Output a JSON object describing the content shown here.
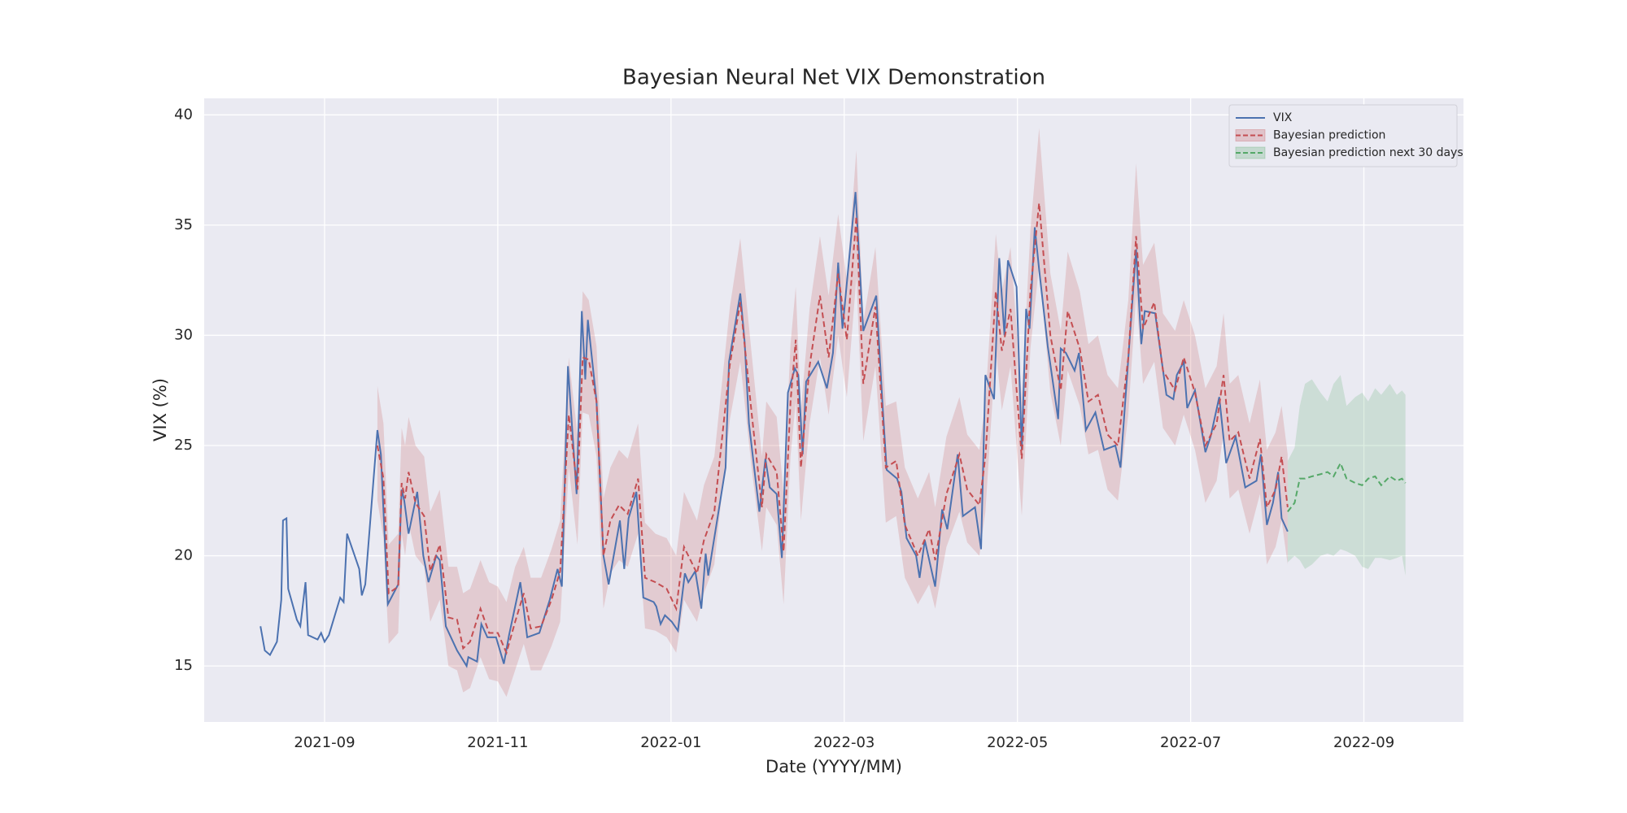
{
  "chart_data": {
    "type": "line",
    "title": "Bayesian Neural Net VIX Demonstration",
    "x_label": "Date (YYYY/MM)",
    "y_label": "VIX (%)",
    "xlim": [
      7.61,
      22.15
    ],
    "xticks": [
      {
        "value": 9,
        "label": "2021-09"
      },
      {
        "value": 11,
        "label": "2021-11"
      },
      {
        "value": 13,
        "label": "2022-01"
      },
      {
        "value": 15,
        "label": "2022-03"
      },
      {
        "value": 17,
        "label": "2022-05"
      },
      {
        "value": 19,
        "label": "2022-07"
      },
      {
        "value": 21,
        "label": "2022-09"
      }
    ],
    "ylim": [
      12.46,
      40.75
    ],
    "yticks": [
      15,
      20,
      25,
      30,
      35,
      40
    ],
    "grid": true,
    "legend": "upper right",
    "series": [
      {
        "name": "VIX",
        "color": "#4c72b0",
        "style": "solid",
        "x": [
          8.26,
          8.31,
          8.37,
          8.45,
          8.5,
          8.52,
          8.56,
          8.58,
          8.68,
          8.72,
          8.78,
          8.81,
          8.92,
          8.96,
          9.0,
          9.05,
          9.18,
          9.22,
          9.26,
          9.4,
          9.43,
          9.47,
          9.61,
          9.65,
          9.73,
          9.85,
          9.89,
          9.92,
          9.97,
          10.07,
          10.14,
          10.2,
          10.29,
          10.33,
          10.4,
          10.53,
          10.64,
          10.66,
          10.76,
          10.81,
          10.88,
          10.98,
          11.07,
          11.13,
          11.26,
          11.34,
          11.48,
          11.6,
          11.69,
          11.74,
          11.81,
          11.91,
          11.97,
          12.01,
          12.04,
          12.14,
          12.22,
          12.28,
          12.41,
          12.46,
          12.51,
          12.6,
          12.68,
          12.8,
          12.83,
          12.88,
          12.93,
          13.01,
          13.08,
          13.16,
          13.2,
          13.28,
          13.35,
          13.4,
          13.43,
          13.63,
          13.67,
          13.8,
          13.85,
          13.9,
          14.02,
          14.09,
          14.14,
          14.22,
          14.28,
          14.35,
          14.43,
          14.47,
          14.52,
          14.56,
          14.7,
          14.8,
          14.87,
          14.93,
          14.98,
          15.13,
          15.22,
          15.37,
          15.44,
          15.49,
          15.61,
          15.66,
          15.72,
          15.83,
          15.87,
          15.93,
          16.05,
          16.13,
          16.19,
          16.31,
          16.37,
          16.51,
          16.58,
          16.63,
          16.73,
          16.79,
          16.85,
          16.89,
          16.99,
          17.05,
          17.1,
          17.14,
          17.2,
          17.25,
          17.35,
          17.47,
          17.5,
          17.56,
          17.66,
          17.71,
          17.79,
          17.9,
          18.0,
          18.13,
          18.19,
          18.37,
          18.43,
          18.47,
          18.59,
          18.66,
          18.72,
          18.8,
          18.84,
          18.92,
          18.96,
          19.05,
          19.17,
          19.23,
          19.33,
          19.41,
          19.52,
          19.63,
          19.76,
          19.81,
          19.88,
          19.95,
          20.01,
          20.05,
          20.12
        ],
        "values": [
          16.8,
          15.7,
          15.5,
          16.1,
          18.0,
          21.6,
          21.7,
          18.5,
          17.1,
          16.8,
          18.8,
          16.4,
          16.2,
          16.5,
          16.1,
          16.4,
          18.1,
          17.9,
          21.0,
          19.4,
          18.2,
          18.7,
          25.7,
          24.6,
          17.8,
          18.7,
          23.0,
          22.5,
          21.0,
          22.9,
          20.0,
          18.8,
          20.0,
          19.8,
          16.8,
          15.7,
          15.0,
          15.4,
          15.2,
          16.9,
          16.3,
          16.3,
          15.1,
          16.4,
          18.8,
          16.3,
          16.5,
          18.0,
          19.4,
          18.6,
          28.6,
          22.8,
          31.1,
          28.0,
          30.7,
          27.0,
          20.0,
          18.7,
          21.6,
          19.4,
          21.7,
          22.9,
          18.1,
          17.9,
          17.7,
          16.9,
          17.3,
          17.0,
          16.6,
          19.2,
          18.8,
          19.3,
          17.6,
          20.1,
          19.1,
          24.0,
          28.8,
          31.9,
          29.7,
          26.0,
          22.0,
          24.4,
          23.1,
          22.8,
          19.9,
          27.4,
          28.5,
          28.2,
          24.6,
          27.9,
          28.8,
          27.6,
          29.2,
          33.3,
          30.3,
          36.5,
          30.2,
          31.8,
          27.0,
          23.9,
          23.5,
          22.9,
          20.8,
          20.0,
          19.0,
          20.7,
          18.6,
          22.1,
          21.2,
          24.6,
          21.8,
          22.2,
          20.3,
          28.2,
          27.1,
          33.5,
          30.0,
          33.4,
          32.2,
          24.8,
          31.2,
          30.3,
          34.9,
          33.0,
          29.5,
          26.2,
          29.4,
          29.2,
          28.4,
          29.2,
          25.7,
          26.5,
          24.8,
          25.0,
          24.0,
          33.9,
          29.6,
          31.1,
          31.0,
          29.0,
          27.3,
          27.1,
          28.2,
          28.8,
          26.7,
          27.5,
          24.7,
          25.4,
          27.2,
          24.2,
          25.4,
          23.1,
          23.4,
          24.6,
          21.4,
          22.4,
          23.8,
          21.7,
          21.1
        ]
      },
      {
        "name": "Bayesian prediction",
        "color": "#c44e52",
        "style": "dashed",
        "x": [
          9.61,
          9.68,
          9.74,
          9.85,
          9.89,
          9.93,
          9.97,
          10.05,
          10.15,
          10.22,
          10.33,
          10.43,
          10.53,
          10.6,
          10.68,
          10.8,
          10.9,
          11.0,
          11.1,
          11.2,
          11.3,
          11.38,
          11.5,
          11.62,
          11.72,
          11.82,
          11.92,
          11.98,
          12.05,
          12.14,
          12.22,
          12.3,
          12.4,
          12.5,
          12.62,
          12.7,
          12.82,
          12.95,
          13.06,
          13.15,
          13.3,
          13.38,
          13.5,
          13.68,
          13.8,
          13.93,
          14.05,
          14.1,
          14.22,
          14.3,
          14.38,
          14.44,
          14.5,
          14.6,
          14.72,
          14.82,
          14.93,
          15.03,
          15.14,
          15.22,
          15.36,
          15.48,
          15.6,
          15.7,
          15.85,
          15.98,
          16.05,
          16.18,
          16.33,
          16.42,
          16.56,
          16.63,
          16.75,
          16.82,
          16.92,
          17.05,
          17.15,
          17.25,
          17.38,
          17.5,
          17.58,
          17.72,
          17.82,
          17.93,
          18.04,
          18.16,
          18.28,
          18.37,
          18.45,
          18.58,
          18.68,
          18.82,
          18.92,
          19.05,
          19.17,
          19.3,
          19.38,
          19.45,
          19.55,
          19.68,
          19.8,
          19.88,
          19.98,
          20.05,
          20.12
        ],
        "values": [
          25.0,
          23.5,
          18.3,
          18.6,
          23.3,
          22.6,
          23.8,
          22.4,
          21.8,
          19.3,
          20.5,
          17.2,
          17.1,
          15.8,
          16.1,
          17.6,
          16.5,
          16.5,
          15.6,
          17.0,
          18.3,
          16.7,
          16.8,
          18.0,
          19.3,
          26.4,
          23.0,
          29.0,
          28.9,
          27.0,
          20.0,
          21.6,
          22.3,
          21.9,
          23.5,
          19.0,
          18.8,
          18.5,
          17.6,
          20.4,
          19.2,
          20.7,
          22.0,
          28.7,
          31.5,
          26.5,
          22.2,
          24.6,
          23.8,
          20.2,
          27.0,
          29.8,
          24.0,
          28.6,
          31.8,
          29.0,
          32.8,
          29.8,
          35.4,
          27.8,
          31.3,
          24.0,
          24.3,
          21.4,
          20.0,
          21.2,
          19.8,
          22.8,
          24.6,
          23.0,
          22.3,
          24.5,
          32.0,
          29.3,
          31.2,
          24.4,
          32.0,
          36.0,
          30.0,
          27.5,
          31.1,
          29.4,
          27.0,
          27.3,
          25.5,
          25.0,
          29.0,
          34.5,
          30.3,
          31.5,
          28.4,
          27.5,
          29.0,
          27.4,
          25.0,
          26.0,
          28.2,
          25.2,
          25.6,
          23.5,
          25.3,
          22.2,
          23.0,
          24.5,
          22.2
        ],
        "lower": [
          22.5,
          20.8,
          16.0,
          16.5,
          21.0,
          20.0,
          21.5,
          20.0,
          19.5,
          17.0,
          18.0,
          15.0,
          14.8,
          13.8,
          14.0,
          15.4,
          14.4,
          14.3,
          13.6,
          14.8,
          16.0,
          14.8,
          14.8,
          15.9,
          17.0,
          24.0,
          20.5,
          26.5,
          26.4,
          24.5,
          17.6,
          19.2,
          19.8,
          19.5,
          21.0,
          16.7,
          16.6,
          16.3,
          15.6,
          18.0,
          17.0,
          18.3,
          19.6,
          26.2,
          28.8,
          24.0,
          20.2,
          22.2,
          21.4,
          17.8,
          24.5,
          27.0,
          21.6,
          26.0,
          29.0,
          26.4,
          30.0,
          27.2,
          32.6,
          25.2,
          28.6,
          21.5,
          21.8,
          19.0,
          17.8,
          18.7,
          17.6,
          20.4,
          22.0,
          20.6,
          20.0,
          22.0,
          29.4,
          26.6,
          28.6,
          21.8,
          29.4,
          33.2,
          27.4,
          25.0,
          28.4,
          26.8,
          24.6,
          24.8,
          23.0,
          22.5,
          26.4,
          31.8,
          27.8,
          28.8,
          25.8,
          25.0,
          26.4,
          24.8,
          22.4,
          23.4,
          25.6,
          22.6,
          23.0,
          21.0,
          22.8,
          19.6,
          20.4,
          21.6,
          19.6
        ],
        "upper": [
          27.7,
          26.0,
          20.5,
          21.0,
          25.8,
          25.0,
          26.3,
          25.0,
          24.5,
          22.0,
          23.0,
          19.5,
          19.5,
          18.3,
          18.5,
          19.8,
          18.8,
          18.6,
          17.9,
          19.5,
          20.4,
          19.0,
          19.0,
          20.3,
          21.6,
          29.0,
          25.5,
          32.0,
          31.6,
          29.5,
          22.6,
          24.0,
          24.8,
          24.4,
          26.0,
          21.5,
          21.0,
          20.8,
          20.0,
          22.9,
          21.6,
          23.2,
          24.5,
          31.3,
          34.4,
          29.2,
          24.5,
          27.0,
          26.3,
          22.8,
          29.6,
          32.2,
          26.6,
          31.2,
          34.5,
          31.8,
          35.5,
          32.5,
          38.4,
          30.6,
          34.0,
          26.8,
          27.0,
          24.0,
          22.6,
          23.8,
          22.2,
          25.4,
          27.2,
          25.5,
          24.8,
          27.0,
          34.6,
          32.0,
          34.0,
          27.2,
          34.8,
          39.4,
          32.8,
          30.2,
          33.8,
          32.0,
          29.6,
          30.0,
          28.2,
          27.6,
          31.6,
          37.8,
          33.2,
          34.2,
          31.0,
          30.2,
          31.6,
          30.0,
          27.6,
          28.6,
          31.0,
          27.8,
          28.2,
          26.0,
          28.0,
          24.8,
          25.6,
          26.8,
          24.6
        ]
      },
      {
        "name": "Bayesian prediction next 30 days",
        "color": "#55a868",
        "style": "dashed",
        "x": [
          20.12,
          20.2,
          20.26,
          20.32,
          20.4,
          20.5,
          20.58,
          20.65,
          20.73,
          20.8,
          20.9,
          20.98,
          21.05,
          21.13,
          21.2,
          21.3,
          21.38,
          21.44,
          21.48
        ],
        "values": [
          22.0,
          22.4,
          23.5,
          23.5,
          23.6,
          23.7,
          23.8,
          23.6,
          24.2,
          23.5,
          23.3,
          23.2,
          23.5,
          23.6,
          23.2,
          23.6,
          23.4,
          23.5,
          23.3
        ],
        "lower": [
          19.7,
          20.0,
          19.8,
          19.4,
          19.6,
          20.0,
          20.1,
          20.0,
          20.3,
          20.2,
          20.0,
          19.5,
          19.4,
          19.9,
          19.9,
          19.8,
          19.9,
          20.0,
          19.1
        ],
        "upper": [
          24.3,
          24.9,
          26.8,
          27.8,
          28.0,
          27.4,
          27.0,
          27.8,
          28.2,
          26.8,
          27.2,
          27.4,
          27.0,
          27.6,
          27.3,
          27.8,
          27.3,
          27.5,
          27.3
        ]
      }
    ]
  }
}
